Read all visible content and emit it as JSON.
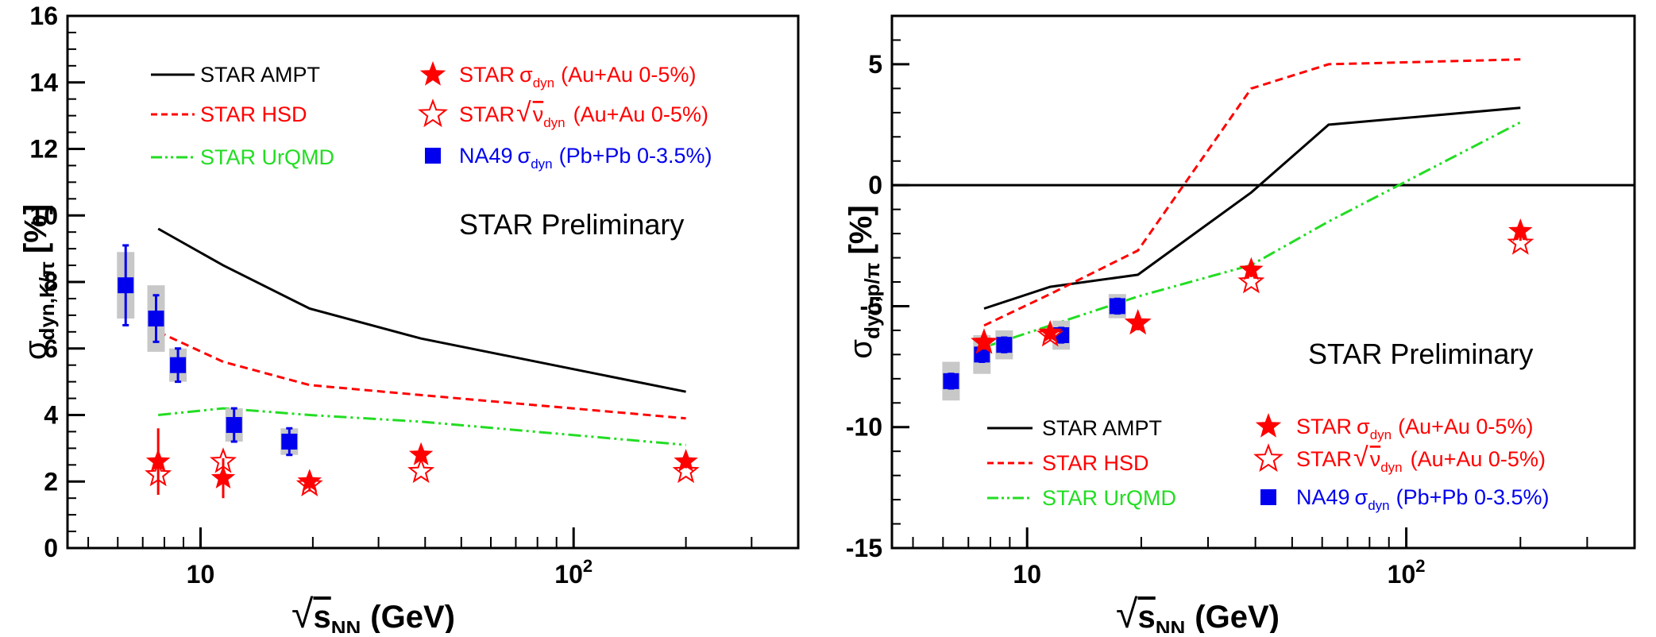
{
  "chart_data": [
    {
      "type": "line",
      "name": "kpi",
      "xscale": "log",
      "xlim": [
        4.4,
        400
      ],
      "ylim": [
        0,
        16
      ],
      "yticks": [
        0,
        2,
        4,
        6,
        8,
        10,
        12,
        14,
        16
      ],
      "xtick_labels": [
        {
          "value": 10,
          "base": "10",
          "exp": ""
        },
        {
          "value": 100,
          "base": "10",
          "exp": "2"
        }
      ],
      "ylabel": {
        "sym": "σ",
        "sub": "dyn,K/π",
        "unit": "[%]"
      },
      "xlabel": {
        "root": "√",
        "sym": "s",
        "sub": "NN",
        "unit": "(GeV)"
      },
      "annotation": "STAR Preliminary",
      "model_lines": [
        {
          "name": "STAR AMPT",
          "color": "#000000",
          "dash": "",
          "x": [
            7.7,
            11.5,
            19.6,
            39,
            200
          ],
          "y": [
            9.6,
            8.5,
            7.2,
            6.3,
            4.7
          ]
        },
        {
          "name": "STAR HSD",
          "color": "#ff0000",
          "dash": "10,6",
          "x": [
            7.7,
            11.5,
            19.6,
            39,
            200
          ],
          "y": [
            6.5,
            5.6,
            4.9,
            4.6,
            3.9
          ]
        },
        {
          "name": "STAR UrQMD",
          "color": "#22dd22",
          "dash": "16,5,3,5,3,5",
          "x": [
            7.7,
            11.5,
            19.6,
            39,
            200
          ],
          "y": [
            4.0,
            4.2,
            4.0,
            3.8,
            3.1
          ]
        }
      ],
      "star_sigma": {
        "name": "STAR σdyn (Au+Au 0-5%)",
        "x": [
          7.7,
          11.5,
          19.6,
          39,
          200
        ],
        "y": [
          2.6,
          2.1,
          2.0,
          2.8,
          2.6
        ],
        "err": [
          1.0,
          0.6,
          0.3,
          0.2,
          0.2
        ]
      },
      "star_nu": {
        "name": "STAR √νdyn (Au+Au 0-5%)",
        "x": [
          7.7,
          11.5,
          19.6,
          39,
          200
        ],
        "y": [
          2.2,
          2.6,
          1.9,
          2.3,
          2.3
        ]
      },
      "na49": {
        "name": "NA49 σdyn (Pb+Pb 0-3.5%)",
        "x": [
          6.3,
          7.6,
          8.7,
          12.3,
          17.3
        ],
        "y": [
          7.9,
          6.9,
          5.5,
          3.7,
          3.2
        ],
        "err": [
          1.2,
          0.7,
          0.5,
          0.5,
          0.4
        ],
        "sys": [
          1.0,
          1.0,
          0.5,
          0.5,
          0.4
        ]
      }
    },
    {
      "type": "line",
      "name": "ppi",
      "xscale": "log",
      "xlim": [
        4.4,
        400
      ],
      "ylim": [
        -15,
        7
      ],
      "yticks": [
        -15,
        -10,
        -5,
        0,
        5
      ],
      "zero_line": true,
      "xtick_labels": [
        {
          "value": 10,
          "base": "10",
          "exp": ""
        },
        {
          "value": 100,
          "base": "10",
          "exp": "2"
        }
      ],
      "ylabel": {
        "sym": "σ",
        "sub": "dyn,p/π",
        "unit": "[%]"
      },
      "xlabel": {
        "root": "√",
        "sym": "s",
        "sub": "NN",
        "unit": "(GeV)"
      },
      "annotation": "STAR Preliminary",
      "model_lines": [
        {
          "name": "STAR AMPT",
          "color": "#000000",
          "dash": "",
          "x": [
            7.7,
            11.5,
            19.6,
            39,
            62.4,
            200
          ],
          "y": [
            -5.1,
            -4.2,
            -3.7,
            -0.3,
            2.5,
            3.2
          ]
        },
        {
          "name": "STAR HSD",
          "color": "#ff0000",
          "dash": "10,6",
          "x": [
            7.7,
            11.5,
            19.6,
            39,
            62.4,
            200
          ],
          "y": [
            -5.8,
            -4.5,
            -2.7,
            4.0,
            5.0,
            5.2
          ]
        },
        {
          "name": "STAR UrQMD",
          "color": "#22dd22",
          "dash": "16,5,3,5,3,5",
          "x": [
            7.7,
            11.5,
            19.6,
            39,
            62.4,
            200
          ],
          "y": [
            -6.7,
            -5.8,
            -4.6,
            -3.3,
            -1.5,
            2.6
          ]
        }
      ],
      "star_sigma": {
        "name": "STAR σdyn (Au+Au 0-5%)",
        "x": [
          7.7,
          11.5,
          19.6,
          39,
          200
        ],
        "y": [
          -6.5,
          -6.1,
          -5.7,
          -3.5,
          -1.9
        ],
        "err": [
          0.3,
          0.3,
          0.3,
          0.3,
          0.4
        ]
      },
      "star_nu": {
        "name": "STAR √νdyn (Au+Au 0-5%)",
        "x": [
          7.7,
          11.5,
          19.6,
          39,
          200
        ],
        "y": [
          -6.5,
          -6.2,
          -5.7,
          -4.0,
          -2.4
        ]
      },
      "na49": {
        "name": "NA49 σdyn (Pb+Pb 0-3.5%)",
        "x": [
          6.3,
          7.6,
          8.7,
          12.3,
          17.3
        ],
        "y": [
          -8.1,
          -7.0,
          -6.6,
          -6.2,
          -5.0
        ],
        "err": [
          0.3,
          0.3,
          0.3,
          0.3,
          0.3
        ],
        "sys": [
          0.8,
          0.8,
          0.6,
          0.6,
          0.5
        ]
      }
    }
  ],
  "legend": {
    "ampt": "STAR AMPT",
    "hsd": "STAR HSD",
    "urqmd": "STAR UrQMD",
    "star_sigma": {
      "pre": "STAR",
      "sym": "σ",
      "sub": "dyn",
      "post": "(Au+Au 0-5%)"
    },
    "star_nu": {
      "pre": "STAR",
      "root": "√",
      "sym": "ν",
      "sub": "dyn",
      "post": "(Au+Au 0-5%)"
    },
    "na49": {
      "pre": "NA49",
      "sym": "σ",
      "sub": "dyn",
      "post": "(Pb+Pb 0-3.5%)"
    }
  },
  "colors": {
    "star": "#ff0000",
    "na49": "#0000ee",
    "sys": "#c8c8c8",
    "ampt": "#000000",
    "hsd": "#ff0000",
    "urqmd": "#22dd22"
  }
}
